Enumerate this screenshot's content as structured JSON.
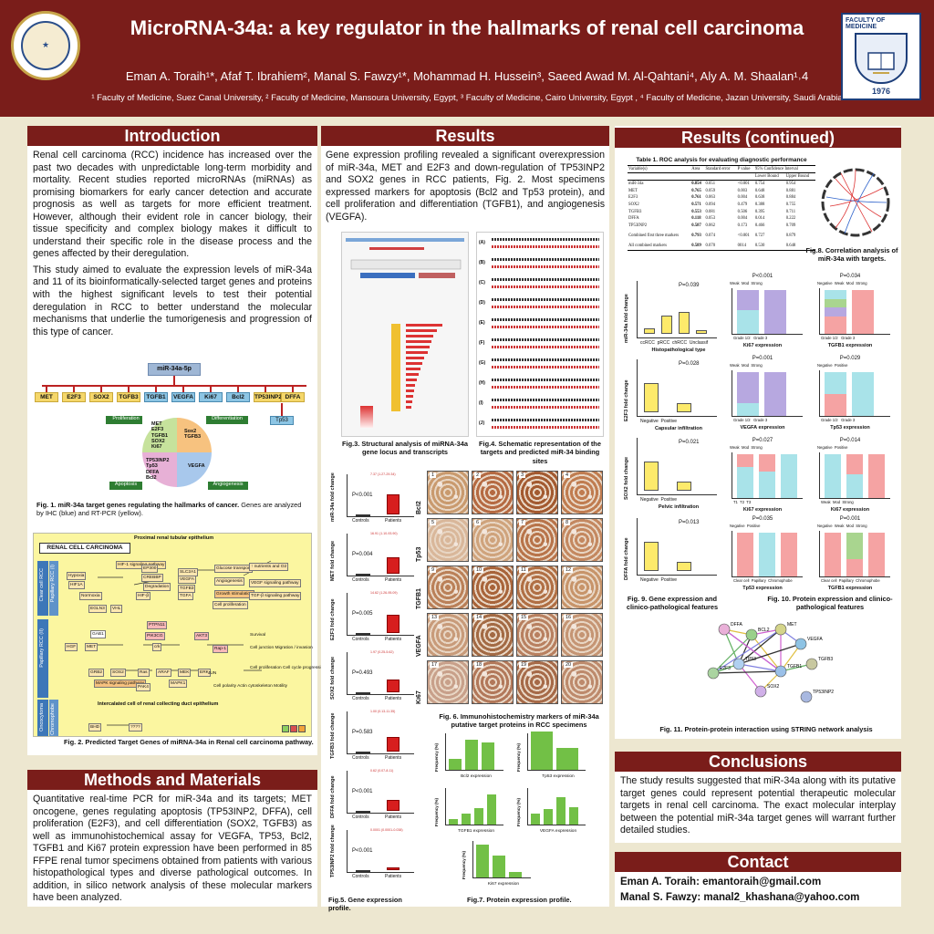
{
  "header": {
    "title": "MicroRNA-34a: a key regulator in the hallmarks of renal cell carcinoma",
    "authors": "Eman A. Toraih¹*, Afaf T. Ibrahiem², Manal S. Fawzy¹*, Mohammad H. Hussein³, Saeed Awad M. Al-Qahtani⁴, Aly A. M. Shaalan¹˒4",
    "affiliations": "¹ Faculty of Medicine, Suez Canal University, ² Faculty of Medicine, Mansoura University, Egypt, ³ Faculty of Medicine, Cairo University, Egypt , ⁴ Faculty of Medicine, Jazan University, Saudi Arabia",
    "logo_right_text": "FACULTY OF MEDICINE",
    "logo_right_year": "1976"
  },
  "introduction": {
    "heading": "Introduction",
    "p1": "Renal cell carcinoma (RCC) incidence has increased over the past two decades with unpredictable long-term morbidity and mortality. Recent studies reported microRNAs (miRNAs) as promising biomarkers for early cancer detection and accurate prognosis as well as targets for more efficient treatment. However, although their evident role in cancer biology, their tissue specificity and complex biology makes it difficult to understand their specific role in the disease process and the genes affected by their deregulation.",
    "p2": "This study aimed to evaluate the expression levels of miR-34a and 11 of its bioinformatically-selected target genes and proteins with the highest significant levels to test their potential deregulation in RCC to better understand the molecular mechanisms that underlie the tumorigenesis and progression of this type of cancer."
  },
  "fig1": {
    "root": "miR-34a-5p",
    "genes": [
      "MET",
      "E2F3",
      "SOX2",
      "TGFB3",
      "TGFB1",
      "VEGFA",
      "Ki67",
      "Bcl2",
      "TP53INP2",
      "DFFA"
    ],
    "tp53": "Tp53",
    "proliferation_label": "Proliferation",
    "differentiation_label": "Differentiation",
    "apoptosis_label": "Apoptosis",
    "angiogenesis_label": "Angiogenesis",
    "prolif_genes": "MET\nE2F3\nTGFB1\nSOX2\nKi67",
    "diff_genes": "Sox2\nTGFB3",
    "apop_genes": "TP53INP2\nTp53\nDFFA\nBcl2",
    "angio_genes": "VEGFA",
    "caption_bold": "Fig. 1. miR-34a target genes regulating the hallmarks of cancer.",
    "caption_rest": " Genes are analyzed by IHC (blue) and RT-PCR (yellow)."
  },
  "fig2": {
    "heading": "RENAL CELL CARCINOMA",
    "top_label": "Proximal renal tubular epithelium",
    "bottom_label": "Intercalated cell of renal collecting duct epithelium",
    "side1": "Clear cell RCC",
    "side2": "Papillary RCC (I)",
    "side3": "Papillary RCC (II)",
    "side4": "Oncocytoma",
    "side5": "Chromophobe",
    "nodes": [
      "Hypoxia",
      "HIF1A",
      "Normoxia",
      "EGLN3",
      "VHL",
      "HIF-1 signaling pathway",
      "EP300",
      "CREBBP",
      "SLC2A1",
      "VEGFA",
      "TGFB3",
      "TGFA",
      "HIF-β",
      "Degradation",
      "Glucose transport",
      "Angiogenesis",
      "Growth stimulation",
      "Cell proliferation",
      "↑ nutrients and O2",
      "VEGF signaling pathway",
      "TGF-β signaling pathway",
      "PTPN11",
      "GAB1",
      "PIK3CG",
      "AKT3",
      "HGF",
      "MET",
      "crk",
      "Rap-1",
      "GRB2",
      "SOS2",
      "Ras",
      "ARAF",
      "MEK",
      "ERK",
      "MAPK signaling pathway",
      "PAK4",
      "MAPK1",
      "JUN",
      "Survival",
      "Cell junction Migration / invasion",
      "Cell proliferation Cell cycle progression",
      "Cell polarity Actin cytoskeleton Motility",
      "BHD",
      "????"
    ],
    "caption": "Fig. 2. Predicted Target Genes of miRNA-34a in Renal cell carcinoma pathway."
  },
  "methods": {
    "heading": "Methods and Materials",
    "text": "Quantitative real-time PCR for miR-34a and its targets; MET oncogene, genes regulating apoptosis (TP53INP2, DFFA), cell proliferation (E2F3), and cell differentiation (SOX2, TGFB3) as well as immunohistochemical assay for VEGFA, TP53, Bcl2, TGFB1 and Ki67 protein expression have been performed in 85 FFPE renal tumor specimens obtained from patients with various histopathological types and diverse pathological outcomes. In addition, in silico network analysis of these molecular markers have been analyzed."
  },
  "results": {
    "heading": "Results",
    "text": "Gene expression profiling revealed a significant overexpression of miR-34a, MET and E2F3 and down-regulation of TP53INP2 and SOX2 genes in RCC patients, Fig. 2. Most specimens expressed markers for apoptosis (Bcl2 and Tp53 protein), and cell proliferation and differentiation (TGFB1), and angiogenesis (VEGFA).",
    "fig3_caption": "Fig.3. Structural analysis of miRNA-34a gene locus and transcripts",
    "fig4_caption": "Fig.4. Schematic representation of the targets and predicted miR-34 binding sites",
    "fig4_labels": [
      "(A)",
      "(B)",
      "(C)",
      "(D)",
      "(E)",
      "(F)",
      "(G)",
      "(H)",
      "(I)",
      "(J)"
    ],
    "fig5_caption": "Fig.5. Gene expression profile.",
    "fig5_panels": [
      {
        "ylabel": "miR-34a fold change",
        "p": "P<0.001",
        "note": "7.37 (1.27-29.34)"
      },
      {
        "ylabel": "MET fold change",
        "p": "P=0.004",
        "note": "16.91 (1.10-93.90)"
      },
      {
        "ylabel": "E2F3 fold change",
        "p": "P=0.005",
        "note": "14.62 (1.26-95.09)"
      },
      {
        "ylabel": "SOX2 fold change",
        "p": "P=0.493",
        "note": "1.97 (0.25-5.62)"
      },
      {
        "ylabel": "TGFB3 fold change",
        "p": "P=0.583",
        "note": "1.00 (0.13-11.35)"
      },
      {
        "ylabel": "DFFA fold change",
        "p": "P<0.001",
        "note": "0.62 (0.07-8.11)"
      },
      {
        "ylabel": "TP53INP2 fold change",
        "p": "P<0.001",
        "note": "0.0001 (0.0001-0.038)"
      }
    ],
    "fig5_xlabels": [
      "Controls",
      "Patients"
    ],
    "fig6_caption": "Fig. 6. Immunohistochemistry markers of miR-34a putative target proteins in RCC specimens",
    "fig6_rows": [
      "Bcl2",
      "Tp53",
      "TGFB1",
      "VEGFA",
      "Ki67"
    ],
    "fig7_caption": "Fig.7. Protein expression profile.",
    "fig7_titles": [
      "Bcl2 expression",
      "Tp53 expression",
      "TGFB1 expression",
      "VEGFA expression",
      "Ki67 expression"
    ],
    "fig7_ylabel": "Frequency (%)"
  },
  "results2": {
    "heading": "Results (continued)",
    "table_caption": "Table 1. ROC analysis for evaluating diagnostic performance",
    "table_headers": [
      "Variable(s)",
      "Area",
      "Standard error",
      "P value",
      "Lower Bound",
      "Upper Bound"
    ],
    "table_group_header": "95% Confidence Interval",
    "table_rows": [
      [
        "miR-34a",
        "0.854",
        "0.051",
        "<0.001",
        "0.754",
        "0.954"
      ],
      [
        "MET",
        "0.765",
        "0.059",
        "0.003",
        "0.648",
        "0.881"
      ],
      [
        "E2F3",
        "0.761",
        "0.063",
        "0.004",
        "0.638",
        "0.884"
      ],
      [
        "SOX2",
        "0.571",
        "0.094",
        "0.479",
        "0.388",
        "0.755"
      ],
      [
        "TGFB3",
        "0.553",
        "0.081",
        "0.506",
        "0.395",
        "0.711"
      ],
      [
        "DFFA",
        "0.118",
        "0.053",
        "0.004",
        "0.014",
        "0.222"
      ],
      [
        "TP53INP2",
        "0.587",
        "0.062",
        "0.173",
        "0.466",
        "0.709"
      ],
      [
        "Combined first three markers",
        "0.793",
        "0.074",
        "<0.001",
        "0.727",
        "0.879"
      ],
      [
        "All combined markers",
        "0.589",
        "0.070",
        "0014",
        "0.530",
        "0.648"
      ]
    ],
    "fig8_caption": "Fig.8. Correlation analysis of miR-34a with targets.",
    "fig9_caption": "Fig. 9. Gene expression and clinico-pathological features",
    "fig9_panels": [
      {
        "ylabel": "miR-34a fold change",
        "p": "P=0.039",
        "xlabel": "Histopathological type",
        "cats": "ccRCC  pRCC  chRCC  Unclassif"
      },
      {
        "ylabel": "E2F3 fold change",
        "p": "P=0.028",
        "xlabel": "Capsular infiltration",
        "cats": "Negative  Positive"
      },
      {
        "ylabel": "SOX2 fold change",
        "p": "P=0.021",
        "xlabel": "Pelvic infiltration",
        "cats": "Negative  Positive"
      },
      {
        "ylabel": "DFFA fold change",
        "p": "P=0.013",
        "xlabel": "",
        "cats": "Negative  Positive"
      }
    ],
    "fig10_caption": "Fig. 10. Protein expression and clinico-pathological features",
    "fig10_panels": [
      {
        "p": "P<0.001",
        "title": "Ki67 expression",
        "cats": "Grade 1/2   Grade 3",
        "legend": "Weak  Mod  Strong"
      },
      {
        "p": "P=0.034",
        "title": "TGFB1 expression",
        "cats": "Grade 1/2   Grade 3",
        "legend": "Negative  Weak  Mod  Strong"
      },
      {
        "p": "P=0.001",
        "title": "VEGFA expression",
        "cats": "Grade 1/2   Grade 3",
        "legend": "Weak  Mod  Strong"
      },
      {
        "p": "P=0.029",
        "title": "Tp53 expression",
        "cats": "Grade 1/2   Grade 3",
        "legend": "Negative  Positive"
      },
      {
        "p": "P=0.027",
        "title": "Ki67 expression",
        "cats": "T1  T2  T3",
        "legend": "Weak  Mod  Strong"
      },
      {
        "p": "P=0.014",
        "title": "Ki67 expression",
        "cats": "Weak  Mod  Strong",
        "legend": "Negative  Positive"
      },
      {
        "p": "P=0.035",
        "title": "Tp53 expression",
        "cats": "Clear cell  Papillary  Chromophobe",
        "legend": "Negative  Positive"
      },
      {
        "p": "P=0.001",
        "title": "TGFB1 expression",
        "cats": "Clear cell  Papillary  Chromophobe",
        "legend": "Negative  Weak  Mod  Strong"
      }
    ],
    "fig11_caption": "Fig. 11. Protein-protein interaction using STRING network analysis",
    "fig11_nodes": [
      "DFFA",
      "BCL2",
      "MET",
      "VEGFA",
      "TP53",
      "E2F3",
      "TGFB1",
      "SOX2",
      "TGFB3",
      "TP53INP2"
    ]
  },
  "conclusions": {
    "heading": "Conclusions",
    "text": "The study results suggested that miR-34a along with its putative target genes could represent potential therapeutic molecular targets in renal cell carcinoma. The exact molecular interplay between the potential miR-34a target genes will warrant further detailed studies."
  },
  "contact": {
    "heading": "Contact",
    "line1": "Eman A. Toraih: emantoraih@gmail.com",
    "line2": "Manal S. Fawzy: manal2_khashana@yahoo.com"
  }
}
